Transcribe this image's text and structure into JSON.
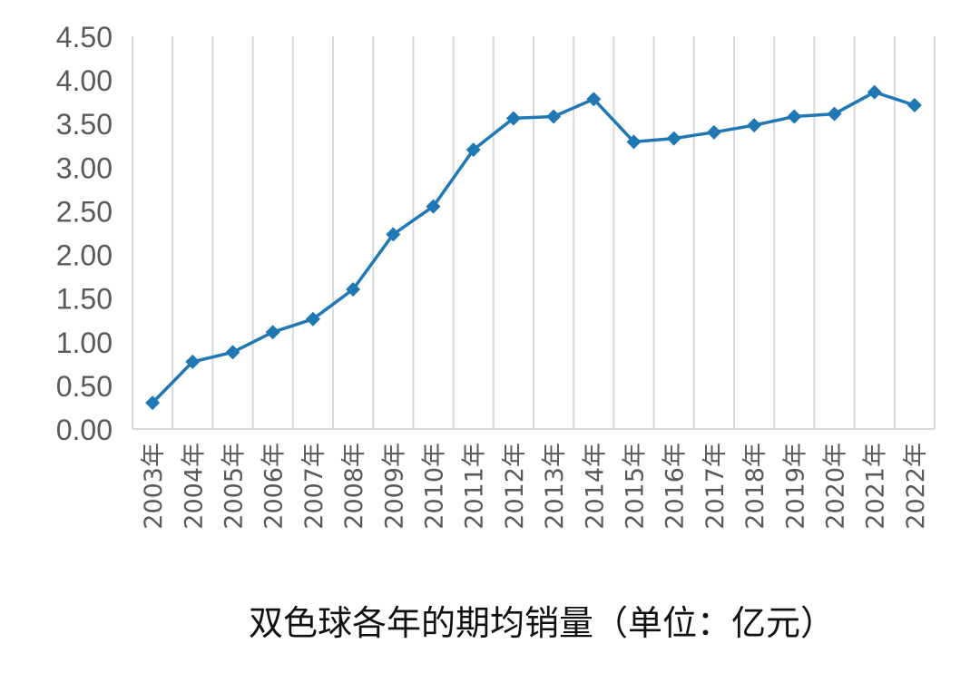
{
  "chart_data": {
    "type": "line",
    "caption": "双色球各年的期均销量（单位：亿元）",
    "categories": [
      "2003年",
      "2004年",
      "2005年",
      "2006年",
      "2007年",
      "2008年",
      "2009年",
      "2010年",
      "2011年",
      "2012年",
      "2013年",
      "2014年",
      "2015年",
      "2016年",
      "2017年",
      "2018年",
      "2019年",
      "2020年",
      "2021年",
      "2022年"
    ],
    "series": [
      {
        "values": [
          0.3,
          0.77,
          0.88,
          1.11,
          1.26,
          1.6,
          2.23,
          2.55,
          3.2,
          3.56,
          3.58,
          3.78,
          3.29,
          3.33,
          3.4,
          3.48,
          3.58,
          3.61,
          3.86,
          3.71
        ]
      }
    ],
    "y_ticks": [
      "0.00",
      "0.50",
      "1.00",
      "1.50",
      "2.00",
      "2.50",
      "3.00",
      "3.50",
      "4.00",
      "4.50"
    ],
    "ylim": [
      0,
      4.5
    ],
    "grid": "vertical",
    "legend": "none",
    "colors": {
      "line": "#1f77b4",
      "grid": "#d9d9d9",
      "text": "#595959",
      "caption": "#111111"
    }
  }
}
